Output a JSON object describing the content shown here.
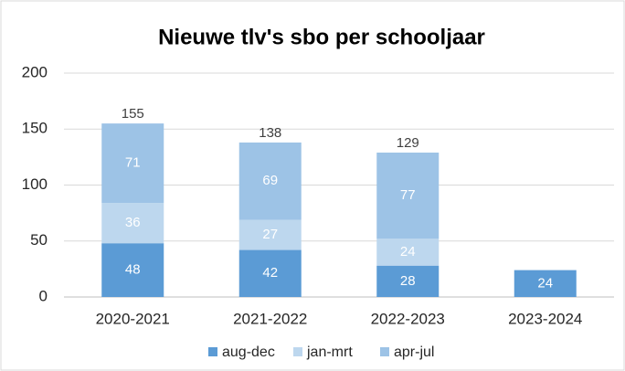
{
  "chart_data": {
    "type": "stacked-bar",
    "title": "Nieuwe tlv's sbo per schooljaar",
    "categories": [
      "2020-2021",
      "2021-2022",
      "2022-2023",
      "2023-2024"
    ],
    "series": [
      {
        "name": "aug-dec",
        "color": "#5b9bd5",
        "values": [
          48,
          42,
          28,
          24
        ]
      },
      {
        "name": "jan-mrt",
        "color": "#bdd7ee",
        "values": [
          36,
          27,
          24,
          null
        ]
      },
      {
        "name": "apr-jul",
        "color": "#9dc3e6",
        "values": [
          71,
          69,
          77,
          null
        ]
      }
    ],
    "totals": [
      155,
      138,
      129,
      null
    ],
    "ylim": [
      0,
      200
    ],
    "yticks": [
      0,
      50,
      100,
      150,
      200
    ],
    "grid": true,
    "legend": "bottom"
  }
}
